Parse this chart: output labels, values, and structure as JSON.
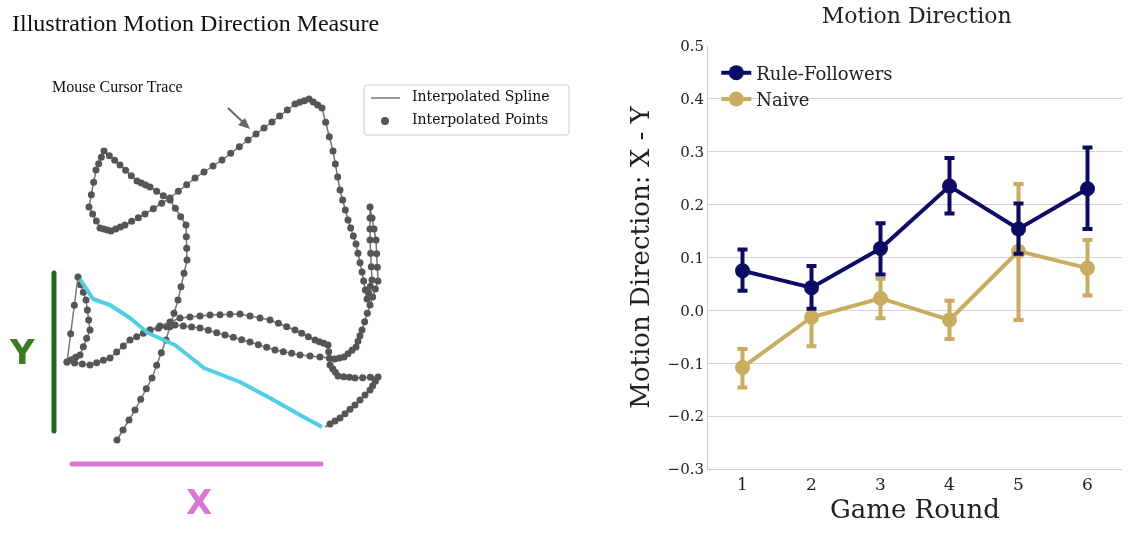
{
  "chart_data": [
    {
      "type": "other",
      "title": "Illustration Motion Direction Measure",
      "annotations": [
        "Mouse Cursor Trace",
        "Interpolated Spline",
        "Interpolated Points",
        "Y",
        "X"
      ]
    },
    {
      "type": "line",
      "title": "Motion Direction",
      "xlabel": "Game Round",
      "ylabel": "Motion Direction: X - Y",
      "categories": [
        "1",
        "2",
        "3",
        "4",
        "5",
        "6"
      ],
      "series": [
        {
          "name": "Rule-Followers",
          "color": "#0c0c66",
          "values": [
            0.075,
            0.043,
            0.117,
            0.235,
            0.154,
            0.23
          ],
          "errors": [
            [
              0.037,
              0.115
            ],
            [
              0.003,
              0.084
            ],
            [
              0.068,
              0.165
            ],
            [
              0.183,
              0.288
            ],
            [
              0.107,
              0.202
            ],
            [
              0.154,
              0.308
            ]
          ]
        },
        {
          "name": "Naive",
          "color": "#c9ad5f",
          "values": [
            -0.108,
            -0.013,
            0.023,
            -0.018,
            0.112,
            0.08
          ],
          "errors": [
            [
              -0.146,
              -0.073
            ],
            [
              -0.068,
              -0.013
            ],
            [
              -0.015,
              0.06
            ],
            [
              -0.054,
              0.018
            ],
            [
              -0.018,
              0.239
            ],
            [
              0.028,
              0.133
            ]
          ]
        }
      ],
      "ylim": [
        -0.3,
        0.5
      ],
      "yticks": [
        {
          "value": -0.3,
          "label": "−0.3"
        },
        {
          "value": -0.2,
          "label": "−0.2"
        },
        {
          "value": -0.1,
          "label": "−0.1"
        },
        {
          "value": 0,
          "label": "0.0"
        },
        0.1,
        0.2,
        0.3,
        0.4,
        0.5
      ],
      "grid": "y",
      "legend": "top left",
      "marker": "circle",
      "line_style": "solid"
    }
  ]
}
